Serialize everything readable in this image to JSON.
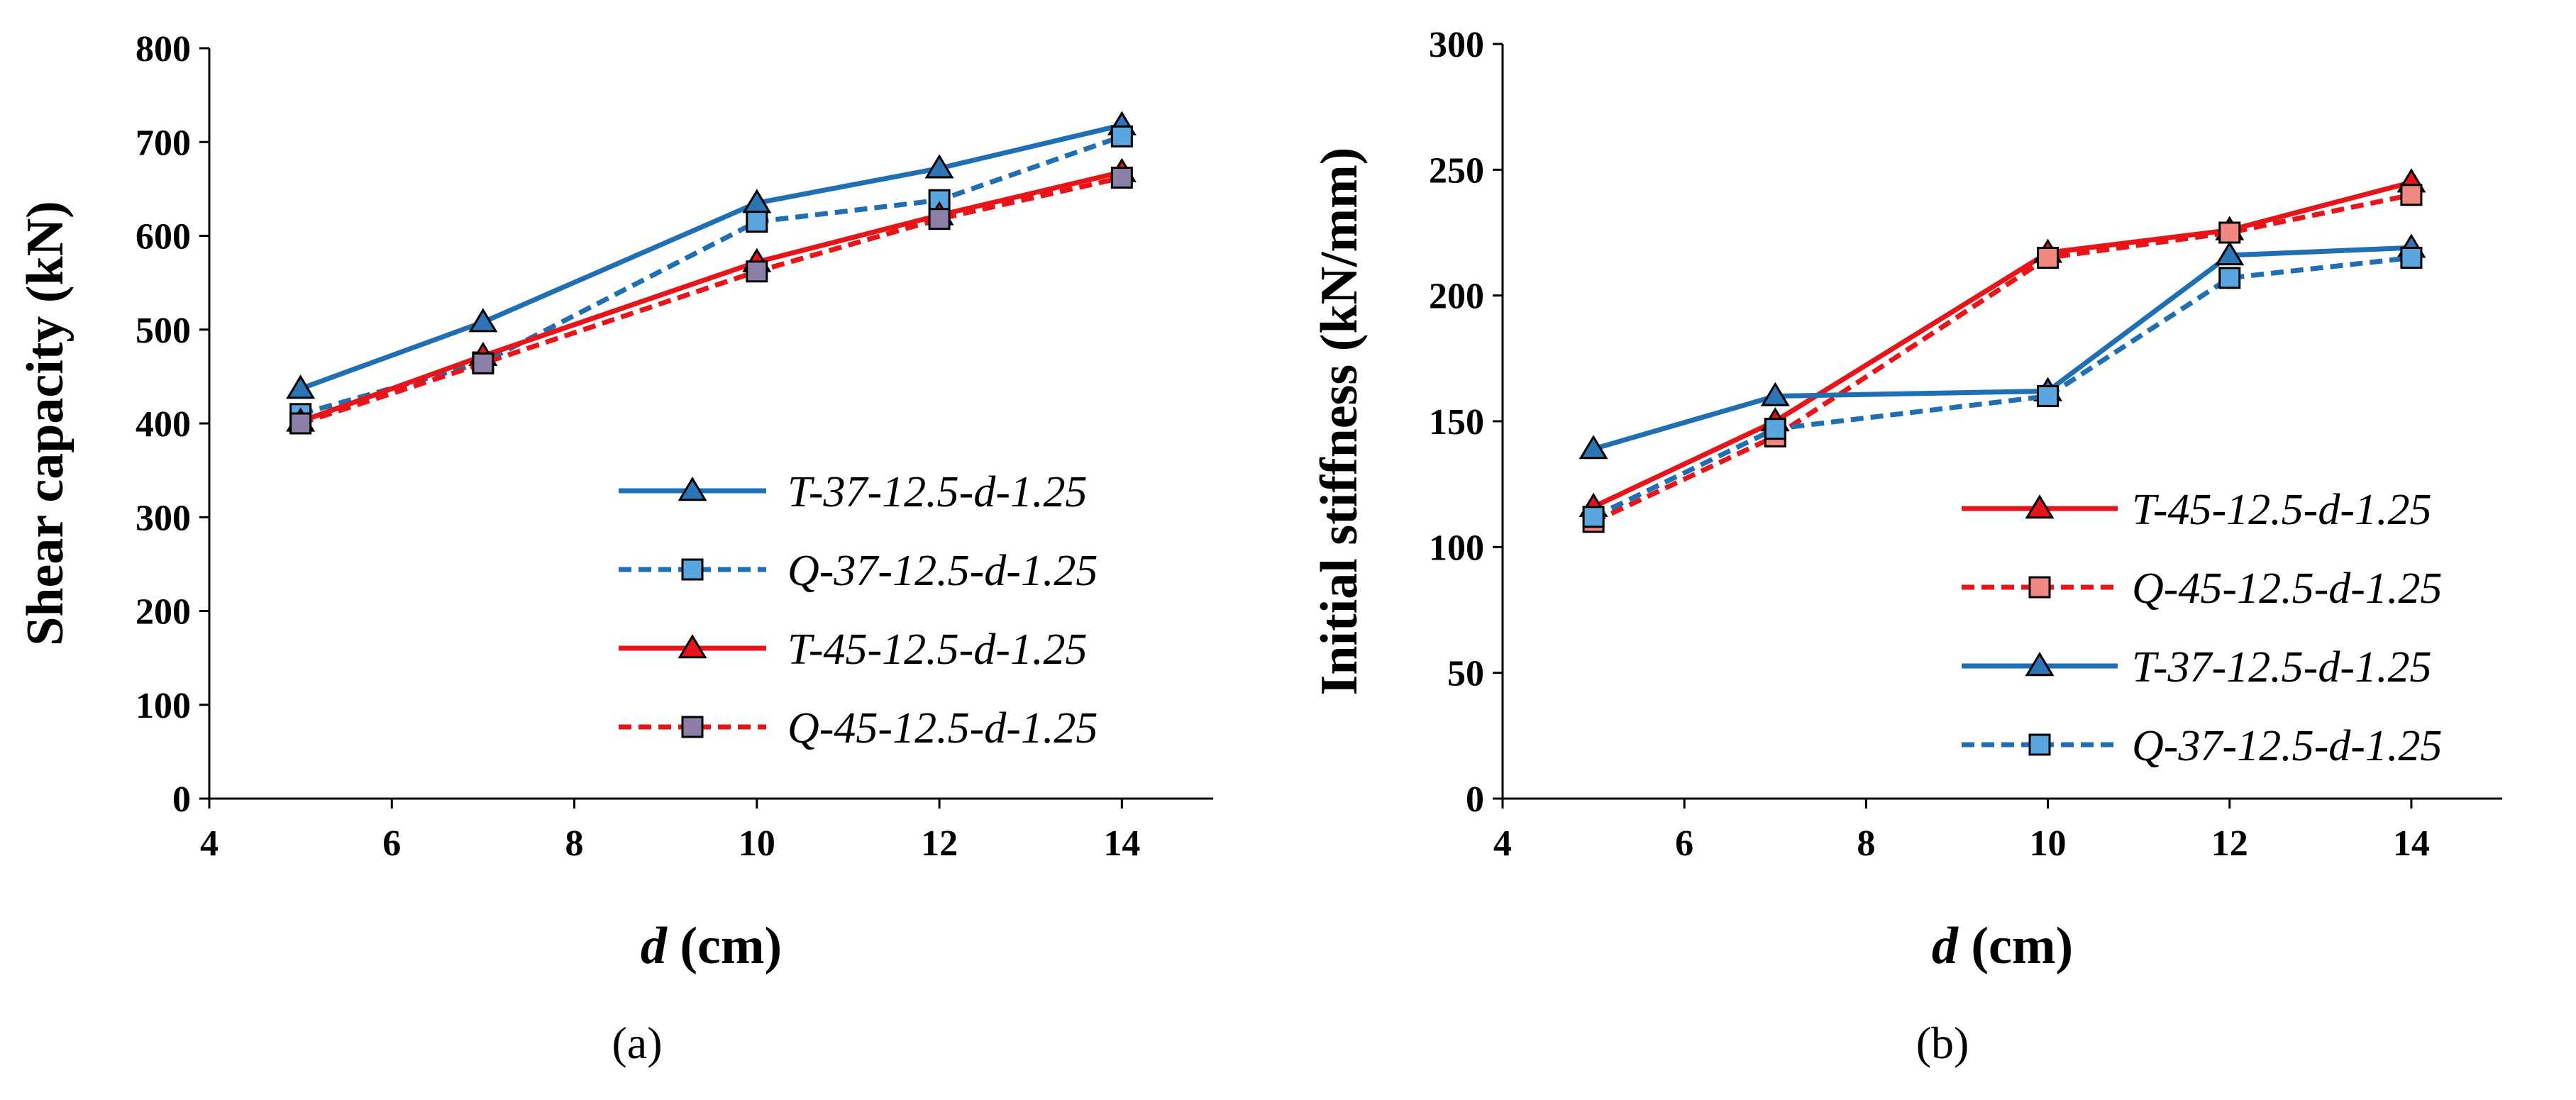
{
  "chart_data": [
    {
      "type": "line",
      "caption": "(a)",
      "xlabel_var": "d",
      "xlabel_unit": " (cm)",
      "ylabel": "Shear capacity (kN)",
      "xlim": [
        4,
        15
      ],
      "ylim": [
        0,
        800
      ],
      "xticks": [
        4,
        6,
        8,
        10,
        12,
        14
      ],
      "yticks": [
        0,
        100,
        200,
        300,
        400,
        500,
        600,
        700,
        800
      ],
      "grid": false,
      "legend_position": "bottom-right",
      "series": [
        {
          "name": "T-37-12.5-d-1.25",
          "color": "#1f6fb2",
          "fill": "#2e75b6",
          "dash": false,
          "marker": "triangle",
          "x": [
            5,
            7,
            10,
            12,
            14
          ],
          "y": [
            437,
            508,
            635,
            672,
            718
          ]
        },
        {
          "name": "Q-37-12.5-d-1.25",
          "color": "#1f6fb2",
          "fill": "#5aa6e0",
          "dash": true,
          "marker": "square",
          "x": [
            5,
            7,
            10,
            12,
            14
          ],
          "y": [
            410,
            465,
            615,
            638,
            706
          ]
        },
        {
          "name": "T-45-12.5-d-1.25",
          "color": "#e8141a",
          "fill": "#e8141a",
          "dash": false,
          "marker": "triangle",
          "x": [
            5,
            7,
            10,
            12,
            14
          ],
          "y": [
            402,
            472,
            572,
            622,
            668
          ]
        },
        {
          "name": "Q-45-12.5-d-1.25",
          "color": "#e8141a",
          "fill": "#8c7fa8",
          "dash": true,
          "marker": "square",
          "x": [
            5,
            7,
            10,
            12,
            14
          ],
          "y": [
            400,
            464,
            562,
            618,
            662
          ]
        }
      ]
    },
    {
      "type": "line",
      "caption": "(b)",
      "xlabel_var": "d",
      "xlabel_unit": " (cm)",
      "ylabel": "Initial stiffness (kN/mm)",
      "xlim": [
        4,
        15
      ],
      "ylim": [
        0,
        300
      ],
      "xticks": [
        4,
        6,
        8,
        10,
        12,
        14
      ],
      "yticks": [
        0,
        50,
        100,
        150,
        200,
        250,
        300
      ],
      "grid": false,
      "legend_position": "bottom-right",
      "series": [
        {
          "name": "T-45-12.5-d-1.25",
          "color": "#e8141a",
          "fill": "#e8141a",
          "dash": false,
          "marker": "triangle",
          "x": [
            5,
            7,
            10,
            12,
            14
          ],
          "y": [
            116,
            150,
            217,
            226,
            245
          ]
        },
        {
          "name": "Q-45-12.5-d-1.25",
          "color": "#e8141a",
          "fill": "#f08a80",
          "dash": true,
          "marker": "square",
          "x": [
            5,
            7,
            10,
            12,
            14
          ],
          "y": [
            110,
            144,
            215,
            225,
            240
          ]
        },
        {
          "name": "T-37-12.5-d-1.25",
          "color": "#1f6fb2",
          "fill": "#2e75b6",
          "dash": false,
          "marker": "triangle",
          "x": [
            5,
            7,
            10,
            12,
            14
          ],
          "y": [
            139,
            160,
            162,
            216,
            219
          ]
        },
        {
          "name": "Q-37-12.5-d-1.25",
          "color": "#1f6fb2",
          "fill": "#5aa6e0",
          "dash": true,
          "marker": "square",
          "x": [
            5,
            7,
            10,
            12,
            14
          ],
          "y": [
            112,
            147,
            160,
            207,
            215
          ]
        }
      ]
    }
  ]
}
